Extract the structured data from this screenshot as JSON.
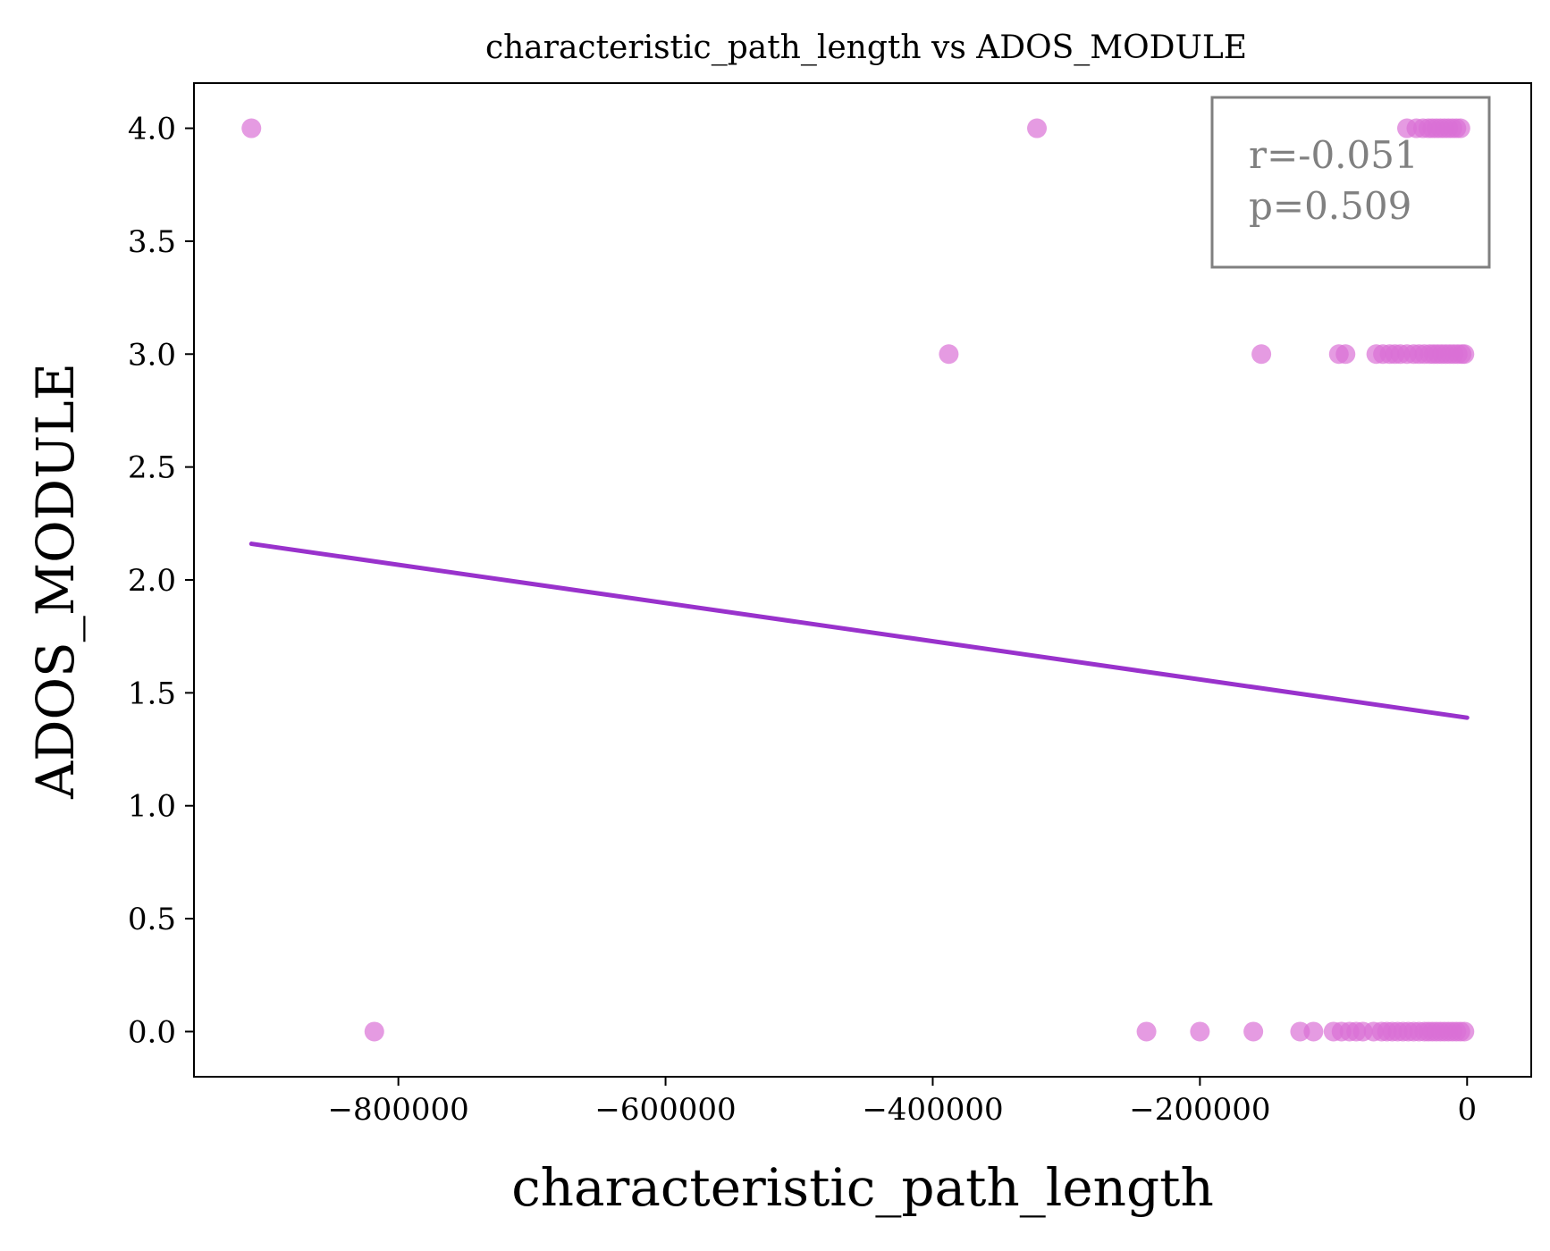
{
  "chart_data": {
    "type": "scatter",
    "title": "characteristic_path_length vs ADOS_MODULE",
    "xlabel": "characteristic_path_length",
    "ylabel": "ADOS_MODULE",
    "xlim": [
      -953000,
      48000
    ],
    "ylim": [
      -0.2,
      4.2
    ],
    "xticks": [
      {
        "value": -800000,
        "label": "−800000"
      },
      {
        "value": -600000,
        "label": "−600000"
      },
      {
        "value": -400000,
        "label": "−400000"
      },
      {
        "value": -200000,
        "label": "−200000"
      },
      {
        "value": 0,
        "label": "0"
      }
    ],
    "yticks": [
      {
        "value": 0.0,
        "label": "0.0"
      },
      {
        "value": 0.5,
        "label": "0.5"
      },
      {
        "value": 1.0,
        "label": "1.0"
      },
      {
        "value": 1.5,
        "label": "1.5"
      },
      {
        "value": 2.0,
        "label": "2.0"
      },
      {
        "value": 2.5,
        "label": "2.5"
      },
      {
        "value": 3.0,
        "label": "3.0"
      },
      {
        "value": 3.5,
        "label": "3.5"
      },
      {
        "value": 4.0,
        "label": "4.0"
      }
    ],
    "grid": false,
    "point_color": "#da70d6",
    "line_color": "#9932cc",
    "points": [
      {
        "x": -910000,
        "y": 4
      },
      {
        "x": -322000,
        "y": 4
      },
      {
        "x": -45000,
        "y": 4
      },
      {
        "x": -38000,
        "y": 4
      },
      {
        "x": -33000,
        "y": 4
      },
      {
        "x": -29000,
        "y": 4
      },
      {
        "x": -26000,
        "y": 4
      },
      {
        "x": -23000,
        "y": 4
      },
      {
        "x": -20000,
        "y": 4
      },
      {
        "x": -17000,
        "y": 4
      },
      {
        "x": -14000,
        "y": 4
      },
      {
        "x": -11000,
        "y": 4
      },
      {
        "x": -8000,
        "y": 4
      },
      {
        "x": -5000,
        "y": 4
      },
      {
        "x": -388000,
        "y": 3
      },
      {
        "x": -154000,
        "y": 3
      },
      {
        "x": -96000,
        "y": 3
      },
      {
        "x": -91000,
        "y": 3
      },
      {
        "x": -68000,
        "y": 3
      },
      {
        "x": -63000,
        "y": 3
      },
      {
        "x": -58000,
        "y": 3
      },
      {
        "x": -54000,
        "y": 3
      },
      {
        "x": -50000,
        "y": 3
      },
      {
        "x": -45000,
        "y": 3
      },
      {
        "x": -40000,
        "y": 3
      },
      {
        "x": -36000,
        "y": 3
      },
      {
        "x": -32000,
        "y": 3
      },
      {
        "x": -28000,
        "y": 3
      },
      {
        "x": -25000,
        "y": 3
      },
      {
        "x": -22000,
        "y": 3
      },
      {
        "x": -19000,
        "y": 3
      },
      {
        "x": -16000,
        "y": 3
      },
      {
        "x": -13000,
        "y": 3
      },
      {
        "x": -10000,
        "y": 3
      },
      {
        "x": -7000,
        "y": 3
      },
      {
        "x": -4000,
        "y": 3
      },
      {
        "x": -2000,
        "y": 3
      },
      {
        "x": -818000,
        "y": 0
      },
      {
        "x": -240000,
        "y": 0
      },
      {
        "x": -200000,
        "y": 0
      },
      {
        "x": -160000,
        "y": 0
      },
      {
        "x": -125000,
        "y": 0
      },
      {
        "x": -115000,
        "y": 0
      },
      {
        "x": -100000,
        "y": 0
      },
      {
        "x": -94000,
        "y": 0
      },
      {
        "x": -88000,
        "y": 0
      },
      {
        "x": -83000,
        "y": 0
      },
      {
        "x": -78000,
        "y": 0
      },
      {
        "x": -70000,
        "y": 0
      },
      {
        "x": -64000,
        "y": 0
      },
      {
        "x": -60000,
        "y": 0
      },
      {
        "x": -56000,
        "y": 0
      },
      {
        "x": -52000,
        "y": 0
      },
      {
        "x": -48000,
        "y": 0
      },
      {
        "x": -44000,
        "y": 0
      },
      {
        "x": -40000,
        "y": 0
      },
      {
        "x": -36000,
        "y": 0
      },
      {
        "x": -32000,
        "y": 0
      },
      {
        "x": -29000,
        "y": 0
      },
      {
        "x": -26000,
        "y": 0
      },
      {
        "x": -23000,
        "y": 0
      },
      {
        "x": -20000,
        "y": 0
      },
      {
        "x": -17000,
        "y": 0
      },
      {
        "x": -14000,
        "y": 0
      },
      {
        "x": -11000,
        "y": 0
      },
      {
        "x": -8000,
        "y": 0
      },
      {
        "x": -5000,
        "y": 0
      },
      {
        "x": -2000,
        "y": 0
      }
    ],
    "regression_line": {
      "x": [
        -910000,
        0
      ],
      "y": [
        2.16,
        1.39
      ]
    },
    "annotation": {
      "lines": [
        "r=-0.051",
        "p=0.509"
      ],
      "color": "#808080"
    }
  }
}
